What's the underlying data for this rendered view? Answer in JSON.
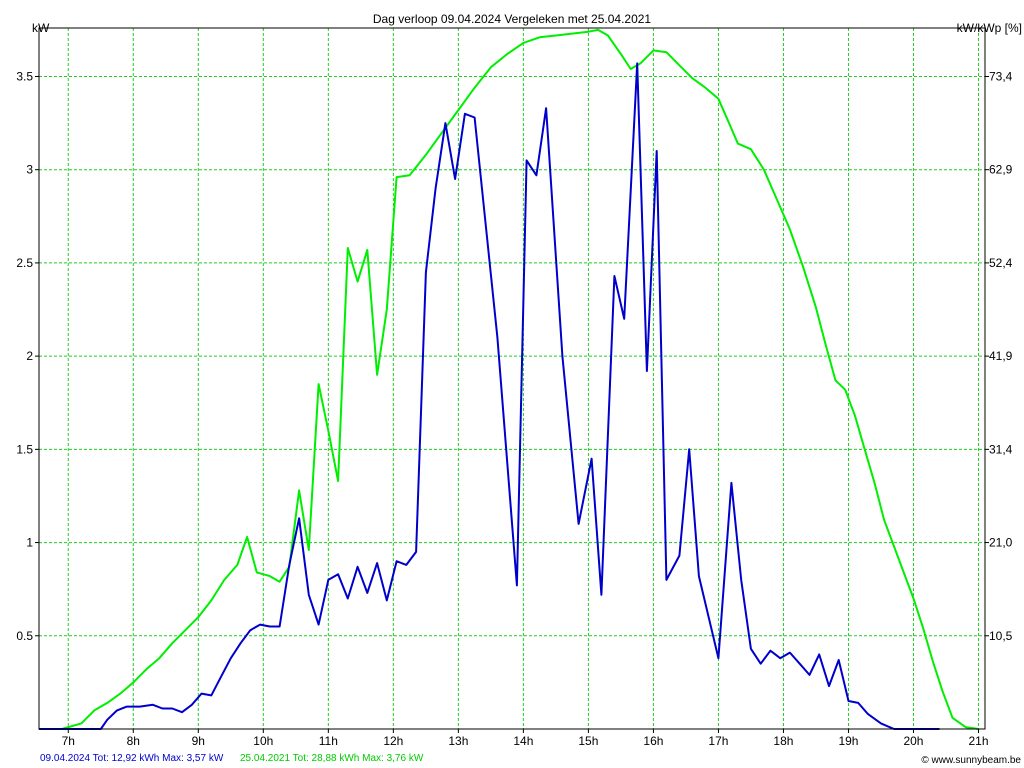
{
  "header": {
    "title": "Dag  verloop 09.04.2024   Vergeleken met 25.04.2021",
    "left_unit": "kW",
    "right_unit": "kW/kWp [%]"
  },
  "footer": {
    "series1_summary": "09.04.2024 Tot: 12,92 kWh Max: 3,57 kW",
    "series2_summary": "25.04.2021 Tot: 28,88 kWh Max: 3,76 kW",
    "credit": "© www.sunnybeam.be"
  },
  "colors": {
    "series1": "#0000cc",
    "series2": "#00ee00",
    "grid": "#22cc22",
    "frame": "#000000"
  },
  "chart_data": {
    "type": "line",
    "title": "Dag  verloop 09.04.2024   Vergeleken met 25.04.2021",
    "xlabel": "",
    "ylabel": "kW",
    "ylabel_right": "kW/kWp [%]",
    "xlim": [
      6.55,
      21.1
    ],
    "ylim": [
      0,
      3.76
    ],
    "grid": true,
    "x_ticks": [
      {
        "value": 7,
        "label": "7h"
      },
      {
        "value": 8,
        "label": "8h"
      },
      {
        "value": 9,
        "label": "9h"
      },
      {
        "value": 10,
        "label": "10h"
      },
      {
        "value": 11,
        "label": "11h"
      },
      {
        "value": 12,
        "label": "12h"
      },
      {
        "value": 13,
        "label": "13h"
      },
      {
        "value": 14,
        "label": "14h"
      },
      {
        "value": 15,
        "label": "15h"
      },
      {
        "value": 16,
        "label": "16h"
      },
      {
        "value": 17,
        "label": "17h"
      },
      {
        "value": 18,
        "label": "18h"
      },
      {
        "value": 19,
        "label": "19h"
      },
      {
        "value": 20,
        "label": "20h"
      },
      {
        "value": 21,
        "label": "21h"
      }
    ],
    "y_ticks_left": [
      {
        "value": 0.5,
        "label": "0.5"
      },
      {
        "value": 1,
        "label": "1"
      },
      {
        "value": 1.5,
        "label": "1.5"
      },
      {
        "value": 2,
        "label": "2"
      },
      {
        "value": 2.5,
        "label": "2.5"
      },
      {
        "value": 3,
        "label": "3"
      },
      {
        "value": 3.5,
        "label": "3.5"
      }
    ],
    "y_ticks_right": [
      {
        "value": 0.5,
        "label": "10,5"
      },
      {
        "value": 1,
        "label": "21,0"
      },
      {
        "value": 1.5,
        "label": "31,4"
      },
      {
        "value": 2,
        "label": "41,9"
      },
      {
        "value": 2.5,
        "label": "52,4"
      },
      {
        "value": 3,
        "label": "62,9"
      },
      {
        "value": 3.5,
        "label": "73,4"
      }
    ],
    "series": [
      {
        "date": "09.04.2024",
        "color": "#0000cc",
        "points": [
          [
            6.55,
            0
          ],
          [
            7.1,
            0
          ],
          [
            7.5,
            0
          ],
          [
            7.6,
            0.05
          ],
          [
            7.75,
            0.1
          ],
          [
            7.9,
            0.12
          ],
          [
            8.1,
            0.12
          ],
          [
            8.3,
            0.13
          ],
          [
            8.45,
            0.11
          ],
          [
            8.6,
            0.11
          ],
          [
            8.75,
            0.09
          ],
          [
            8.9,
            0.13
          ],
          [
            9.05,
            0.19
          ],
          [
            9.2,
            0.18
          ],
          [
            9.35,
            0.28
          ],
          [
            9.5,
            0.38
          ],
          [
            9.65,
            0.46
          ],
          [
            9.8,
            0.53
          ],
          [
            9.95,
            0.56
          ],
          [
            10.1,
            0.55
          ],
          [
            10.25,
            0.55
          ],
          [
            10.4,
            0.88
          ],
          [
            10.55,
            1.13
          ],
          [
            10.7,
            0.72
          ],
          [
            10.85,
            0.56
          ],
          [
            11.0,
            0.8
          ],
          [
            11.15,
            0.83
          ],
          [
            11.3,
            0.7
          ],
          [
            11.45,
            0.87
          ],
          [
            11.6,
            0.73
          ],
          [
            11.75,
            0.89
          ],
          [
            11.9,
            0.69
          ],
          [
            12.05,
            0.9
          ],
          [
            12.2,
            0.88
          ],
          [
            12.35,
            0.95
          ],
          [
            12.5,
            2.45
          ],
          [
            12.65,
            2.9
          ],
          [
            12.8,
            3.25
          ],
          [
            12.95,
            2.95
          ],
          [
            13.1,
            3.3
          ],
          [
            13.25,
            3.28
          ],
          [
            13.6,
            2.1
          ],
          [
            13.9,
            0.77
          ],
          [
            14.05,
            3.05
          ],
          [
            14.2,
            2.97
          ],
          [
            14.35,
            3.33
          ],
          [
            14.6,
            2.0
          ],
          [
            14.85,
            1.1
          ],
          [
            15.05,
            1.45
          ],
          [
            15.2,
            0.72
          ],
          [
            15.4,
            2.43
          ],
          [
            15.55,
            2.2
          ],
          [
            15.75,
            3.57
          ],
          [
            15.9,
            1.92
          ],
          [
            16.05,
            3.1
          ],
          [
            16.2,
            0.8
          ],
          [
            16.4,
            0.93
          ],
          [
            16.55,
            1.5
          ],
          [
            16.7,
            0.82
          ],
          [
            17.0,
            0.38
          ],
          [
            17.2,
            1.32
          ],
          [
            17.35,
            0.8
          ],
          [
            17.5,
            0.43
          ],
          [
            17.65,
            0.35
          ],
          [
            17.8,
            0.42
          ],
          [
            17.95,
            0.38
          ],
          [
            18.1,
            0.41
          ],
          [
            18.25,
            0.35
          ],
          [
            18.4,
            0.29
          ],
          [
            18.55,
            0.4
          ],
          [
            18.7,
            0.23
          ],
          [
            18.85,
            0.37
          ],
          [
            19.0,
            0.15
          ],
          [
            19.15,
            0.14
          ],
          [
            19.3,
            0.08
          ],
          [
            19.5,
            0.03
          ],
          [
            19.7,
            0
          ],
          [
            20.4,
            0
          ]
        ]
      },
      {
        "date": "25.04.2021",
        "color": "#00ee00",
        "points": [
          [
            6.55,
            0
          ],
          [
            6.9,
            0
          ],
          [
            7.2,
            0.03
          ],
          [
            7.4,
            0.1
          ],
          [
            7.6,
            0.14
          ],
          [
            7.8,
            0.19
          ],
          [
            8.0,
            0.25
          ],
          [
            8.2,
            0.32
          ],
          [
            8.4,
            0.38
          ],
          [
            8.6,
            0.46
          ],
          [
            8.8,
            0.53
          ],
          [
            9.0,
            0.6
          ],
          [
            9.2,
            0.69
          ],
          [
            9.4,
            0.8
          ],
          [
            9.6,
            0.88
          ],
          [
            9.75,
            1.03
          ],
          [
            9.9,
            0.84
          ],
          [
            10.1,
            0.82
          ],
          [
            10.25,
            0.79
          ],
          [
            10.4,
            0.87
          ],
          [
            10.55,
            1.28
          ],
          [
            10.7,
            0.96
          ],
          [
            10.85,
            1.85
          ],
          [
            11.0,
            1.6
          ],
          [
            11.15,
            1.33
          ],
          [
            11.3,
            2.58
          ],
          [
            11.45,
            2.4
          ],
          [
            11.6,
            2.57
          ],
          [
            11.75,
            1.9
          ],
          [
            11.9,
            2.25
          ],
          [
            12.05,
            2.96
          ],
          [
            12.25,
            2.97
          ],
          [
            12.5,
            3.08
          ],
          [
            12.75,
            3.2
          ],
          [
            13.0,
            3.32
          ],
          [
            13.25,
            3.44
          ],
          [
            13.5,
            3.55
          ],
          [
            13.75,
            3.62
          ],
          [
            14.0,
            3.68
          ],
          [
            14.25,
            3.71
          ],
          [
            14.5,
            3.72
          ],
          [
            14.75,
            3.73
          ],
          [
            15.0,
            3.74
          ],
          [
            15.15,
            3.75
          ],
          [
            15.3,
            3.72
          ],
          [
            15.5,
            3.62
          ],
          [
            15.65,
            3.54
          ],
          [
            15.8,
            3.57
          ],
          [
            16.0,
            3.64
          ],
          [
            16.2,
            3.63
          ],
          [
            16.4,
            3.56
          ],
          [
            16.6,
            3.49
          ],
          [
            16.8,
            3.44
          ],
          [
            17.0,
            3.38
          ],
          [
            17.15,
            3.26
          ],
          [
            17.3,
            3.14
          ],
          [
            17.5,
            3.11
          ],
          [
            17.7,
            3.0
          ],
          [
            17.9,
            2.84
          ],
          [
            18.1,
            2.68
          ],
          [
            18.3,
            2.48
          ],
          [
            18.5,
            2.26
          ],
          [
            18.65,
            2.06
          ],
          [
            18.8,
            1.87
          ],
          [
            18.95,
            1.82
          ],
          [
            19.1,
            1.68
          ],
          [
            19.25,
            1.5
          ],
          [
            19.4,
            1.32
          ],
          [
            19.55,
            1.12
          ],
          [
            19.7,
            0.98
          ],
          [
            19.85,
            0.84
          ],
          [
            20.0,
            0.7
          ],
          [
            20.15,
            0.54
          ],
          [
            20.3,
            0.36
          ],
          [
            20.45,
            0.2
          ],
          [
            20.6,
            0.06
          ],
          [
            20.8,
            0.01
          ],
          [
            21.0,
            0
          ]
        ]
      }
    ]
  }
}
